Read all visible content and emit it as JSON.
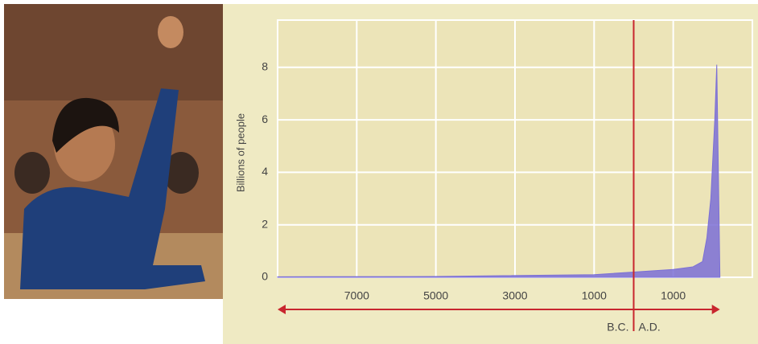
{
  "chart_data": {
    "type": "area",
    "ylabel": "Billions of people",
    "x": [
      -9000,
      -5000,
      -1000,
      0,
      1000,
      1500,
      1740,
      1850,
      1950,
      2050,
      2100,
      2180
    ],
    "values": [
      0.02,
      0.03,
      0.1,
      0.2,
      0.3,
      0.4,
      0.6,
      1.5,
      3,
      6,
      8.1,
      0
    ],
    "color": "#7b6fd6",
    "xlim": [
      -9000,
      3000
    ],
    "xticks": [
      {
        "value": -7000,
        "label": "7000"
      },
      {
        "value": -5000,
        "label": "5000"
      },
      {
        "value": -3000,
        "label": "3000"
      },
      {
        "value": -1000,
        "label": "1000"
      },
      {
        "value": 1000,
        "label": "1000"
      }
    ],
    "ylim": [
      0,
      9.8
    ],
    "yticks": [
      0,
      2,
      4,
      6,
      8
    ],
    "grid": true,
    "divider": {
      "value": 0,
      "left_label": "B.C.",
      "right_label": "A.D."
    }
  }
}
